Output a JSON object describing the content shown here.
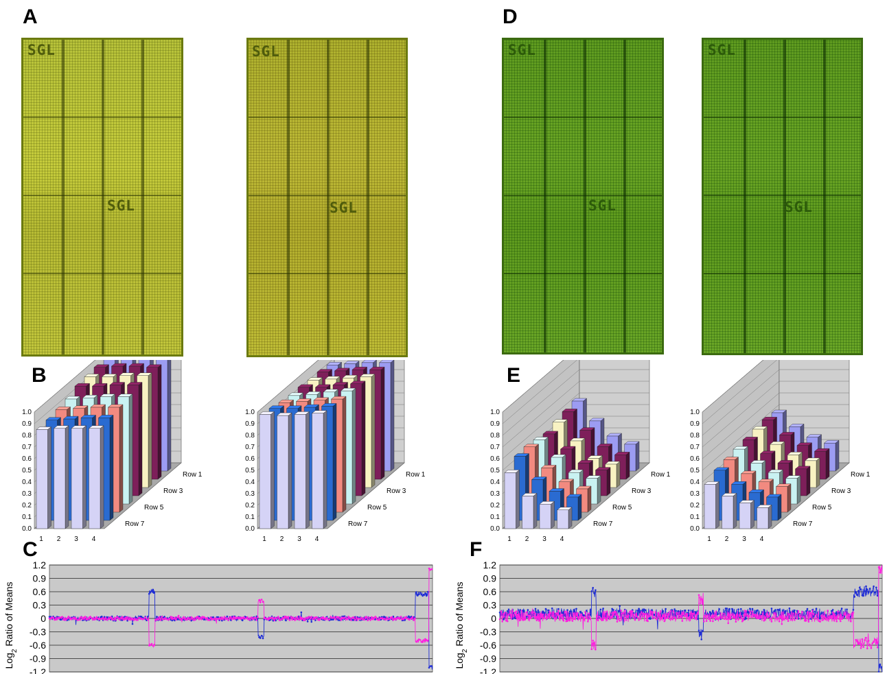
{
  "panels": {
    "a": "A",
    "b": "B",
    "c": "C",
    "d": "D",
    "e": "E",
    "f": "F"
  },
  "arrays": {
    "block_label": "SGL"
  },
  "colors": {
    "lavender": "#d5d3f6",
    "blue": "#2a6bd1",
    "salmon": "#f28a80",
    "light_cyan": "#c9f2f2",
    "maroon": "#7e1f5a",
    "cream": "#f8f2c2",
    "periwinkle": "#9c9cf2",
    "cnv_blue": "#1f2dd6",
    "cnv_magenta": "#ff1fe0",
    "plot_bg": "#c9c9c9"
  },
  "chart_data": [
    {
      "id": "B-left",
      "type": "bar",
      "x_categories": [
        "1",
        "2",
        "3",
        "4"
      ],
      "depth_labels": [
        "Row 1",
        "Row 3",
        "Row 5",
        "Row 7"
      ],
      "ytick_labels": [
        "0.0",
        "0.1",
        "0.2",
        "0.3",
        "0.4",
        "0.5",
        "0.6",
        "0.7",
        "0.8",
        "0.9",
        "1.0"
      ],
      "ylim": [
        0,
        1.0
      ],
      "series_rows": 8,
      "values": [
        [
          0.85,
          0.86,
          0.86,
          0.86
        ],
        [
          0.86,
          0.87,
          0.88,
          0.88
        ],
        [
          0.88,
          0.89,
          0.9,
          0.9
        ],
        [
          0.9,
          0.91,
          0.92,
          0.92
        ],
        [
          0.94,
          0.94,
          0.95,
          0.95
        ],
        [
          0.95,
          0.95,
          0.96,
          0.96
        ],
        [
          0.96,
          0.97,
          0.97,
          0.96
        ],
        [
          0.97,
          0.97,
          0.97,
          0.97
        ]
      ]
    },
    {
      "id": "B-right",
      "type": "bar",
      "x_categories": [
        "1",
        "2",
        "3",
        "4"
      ],
      "depth_labels": [
        "Row 1",
        "Row 3",
        "Row 5",
        "Row 7"
      ],
      "ytick_labels": [
        "0.0",
        "0.1",
        "0.2",
        "0.3",
        "0.4",
        "0.5",
        "0.6",
        "0.7",
        "0.8",
        "0.9",
        "1.0"
      ],
      "ylim": [
        0,
        1.0
      ],
      "series_rows": 8,
      "values": [
        [
          0.98,
          0.97,
          0.98,
          0.99
        ],
        [
          0.96,
          0.96,
          0.97,
          0.98
        ],
        [
          0.94,
          0.95,
          0.96,
          0.97
        ],
        [
          0.93,
          0.94,
          0.96,
          0.97
        ],
        [
          0.93,
          0.93,
          0.95,
          0.96
        ],
        [
          0.92,
          0.93,
          0.94,
          0.95
        ],
        [
          0.92,
          0.93,
          0.94,
          0.94
        ],
        [
          0.91,
          0.92,
          0.93,
          0.93
        ]
      ]
    },
    {
      "id": "E-left",
      "type": "bar",
      "x_categories": [
        "1",
        "2",
        "3",
        "4"
      ],
      "depth_labels": [
        "Row 1",
        "Row 3",
        "Row 5",
        "Row 7"
      ],
      "ytick_labels": [
        "0.0",
        "0.1",
        "0.2",
        "0.3",
        "0.4",
        "0.5",
        "0.6",
        "0.7",
        "0.8",
        "0.9",
        "1.0"
      ],
      "ylim": [
        0,
        1.0
      ],
      "series_rows": 8,
      "values": [
        [
          0.48,
          0.28,
          0.21,
          0.16
        ],
        [
          0.55,
          0.35,
          0.25,
          0.2
        ],
        [
          0.56,
          0.38,
          0.26,
          0.2
        ],
        [
          0.55,
          0.4,
          0.27,
          0.22
        ],
        [
          0.53,
          0.4,
          0.28,
          0.22
        ],
        [
          0.56,
          0.4,
          0.25,
          0.2
        ],
        [
          0.58,
          0.42,
          0.28,
          0.21
        ],
        [
          0.6,
          0.43,
          0.3,
          0.23
        ]
      ]
    },
    {
      "id": "E-right",
      "type": "bar",
      "x_categories": [
        "1",
        "2",
        "3",
        "4"
      ],
      "depth_labels": [
        "Row 1",
        "Row 3",
        "Row 5",
        "Row 7"
      ],
      "ytick_labels": [
        "0.0",
        "0.1",
        "0.2",
        "0.3",
        "0.4",
        "0.5",
        "0.6",
        "0.7",
        "0.8",
        "0.9",
        "1.0"
      ],
      "ylim": [
        0,
        1.0
      ],
      "series_rows": 8,
      "values": [
        [
          0.38,
          0.28,
          0.22,
          0.18
        ],
        [
          0.43,
          0.31,
          0.24,
          0.2
        ],
        [
          0.45,
          0.33,
          0.26,
          0.22
        ],
        [
          0.47,
          0.35,
          0.27,
          0.22
        ],
        [
          0.48,
          0.36,
          0.28,
          0.23
        ],
        [
          0.5,
          0.37,
          0.28,
          0.23
        ],
        [
          0.51,
          0.38,
          0.29,
          0.24
        ],
        [
          0.5,
          0.38,
          0.29,
          0.24
        ]
      ]
    },
    {
      "id": "C",
      "type": "scatter",
      "ylabel_main": "Log",
      "ylabel_sub": "2",
      "ylabel_rest": " Ratio of Means",
      "ytick_labels": [
        "1.2",
        "0.9",
        "0.6",
        "0.3",
        "0",
        "-0.3",
        "-0.6",
        "-0.9",
        "-1.2"
      ],
      "ylim": [
        -1.2,
        1.2
      ],
      "series": [
        {
          "color_key": "cnv_blue",
          "noise": 0.035,
          "segments": [
            {
              "from": 0.0,
              "to": 0.26,
              "level": 0.0
            },
            {
              "from": 0.26,
              "to": 0.275,
              "level": 0.6
            },
            {
              "from": 0.275,
              "to": 0.545,
              "level": 0.0
            },
            {
              "from": 0.545,
              "to": 0.56,
              "level": -0.4
            },
            {
              "from": 0.56,
              "to": 0.955,
              "level": 0.0
            },
            {
              "from": 0.955,
              "to": 0.99,
              "level": 0.55
            },
            {
              "from": 0.99,
              "to": 1.0,
              "level": -1.1
            }
          ]
        },
        {
          "color_key": "cnv_magenta",
          "noise": 0.03,
          "segments": [
            {
              "from": 0.0,
              "to": 0.26,
              "level": 0.0
            },
            {
              "from": 0.26,
              "to": 0.275,
              "level": -0.6
            },
            {
              "from": 0.275,
              "to": 0.545,
              "level": 0.0
            },
            {
              "from": 0.545,
              "to": 0.56,
              "level": 0.4
            },
            {
              "from": 0.56,
              "to": 0.955,
              "level": 0.0
            },
            {
              "from": 0.955,
              "to": 0.99,
              "level": -0.5
            },
            {
              "from": 0.99,
              "to": 1.0,
              "level": 1.1
            }
          ]
        }
      ]
    },
    {
      "id": "F",
      "type": "scatter",
      "ylabel_main": "Log",
      "ylabel_sub": "2",
      "ylabel_rest": " Ratio of Means",
      "ytick_labels": [
        "1.2",
        "0.9",
        "0.6",
        "0.3",
        "0",
        "-0.3",
        "-0.6",
        "-0.9",
        "-1.2"
      ],
      "ylim": [
        -1.2,
        1.2
      ],
      "series": [
        {
          "color_key": "cnv_blue",
          "noise": 0.09,
          "segments": [
            {
              "from": 0.0,
              "to": 0.24,
              "level": 0.1
            },
            {
              "from": 0.24,
              "to": 0.252,
              "level": 0.6
            },
            {
              "from": 0.252,
              "to": 0.52,
              "level": 0.1
            },
            {
              "from": 0.52,
              "to": 0.532,
              "level": -0.35
            },
            {
              "from": 0.532,
              "to": 0.925,
              "level": 0.1
            },
            {
              "from": 0.925,
              "to": 0.99,
              "level": 0.6
            },
            {
              "from": 0.99,
              "to": 1.0,
              "level": -1.1
            }
          ]
        },
        {
          "color_key": "cnv_magenta",
          "noise": 0.09,
          "segments": [
            {
              "from": 0.0,
              "to": 0.24,
              "level": 0.05
            },
            {
              "from": 0.24,
              "to": 0.252,
              "level": -0.6
            },
            {
              "from": 0.252,
              "to": 0.52,
              "level": 0.05
            },
            {
              "from": 0.52,
              "to": 0.532,
              "level": 0.45
            },
            {
              "from": 0.532,
              "to": 0.925,
              "level": 0.05
            },
            {
              "from": 0.925,
              "to": 0.99,
              "level": -0.55
            },
            {
              "from": 0.99,
              "to": 1.0,
              "level": 1.1
            }
          ]
        }
      ]
    }
  ]
}
